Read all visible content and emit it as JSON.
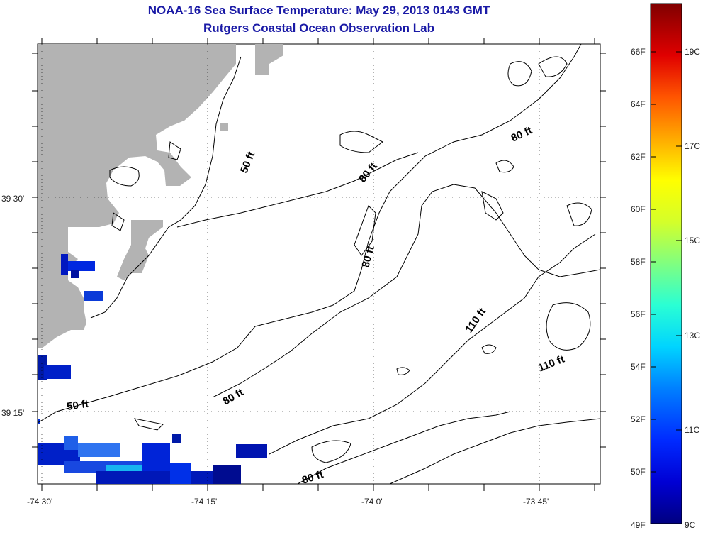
{
  "title": "NOAA-16 Sea Surface Temperature:  May 29, 2013 0143 GMT",
  "subtitle": "Rutgers Coastal Ocean Observation Lab",
  "axes": {
    "y_ticks": [
      "39 30'",
      "39 15'"
    ],
    "x_ticks": [
      "-74 30'",
      "-74 15'",
      "-74 0'",
      "-73 45'"
    ]
  },
  "contour_labels": [
    "50 ft",
    "50 ft",
    "80 ft",
    "80 ft",
    "80 ft",
    "80 ft",
    "80 ft",
    "110 ft",
    "110 ft"
  ],
  "colorbar": {
    "fahrenheit": [
      "66F",
      "64F",
      "62F",
      "60F",
      "58F",
      "56F",
      "54F",
      "52F",
      "50F",
      "49F"
    ],
    "celsius": [
      "19C",
      "17C",
      "15C",
      "13C",
      "11C",
      "9C"
    ],
    "colors": [
      "#800000",
      "#d40000",
      "#ff2a00",
      "#ff8000",
      "#ffd400",
      "#d4ff2a",
      "#80ff80",
      "#2affd4",
      "#00d4ff",
      "#0080ff",
      "#002aff",
      "#0000d4",
      "#000080"
    ]
  },
  "colors": {
    "land": "#b3b3b3",
    "title": "#1a1aa6",
    "contour": "#000000"
  }
}
